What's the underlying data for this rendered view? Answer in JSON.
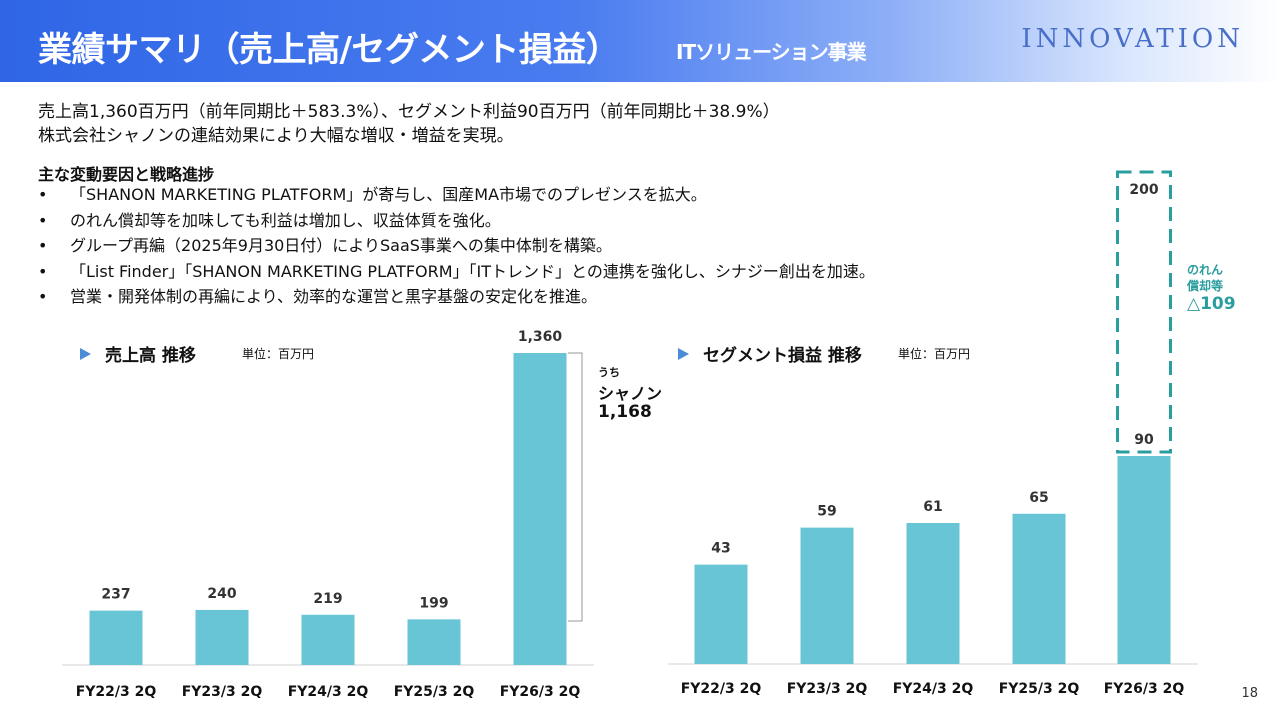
{
  "header": {
    "title": "業績サマリ（売上高/セグメント損益）",
    "subtitle": "ITソリューション事業",
    "logo": "INNOVATION"
  },
  "summary": {
    "line1": "売上高1,360百万円（前年同期比＋583.3%）、セグメント利益90百万円（前年同期比＋38.9%）",
    "line2": "株式会社シャノンの連結効果により大幅な増収・増益を実現。"
  },
  "points": {
    "title": "主な変動要因と戦略進捗",
    "items": [
      "「SHANON MARKETING PLATFORM」が寄与し、国産MA市場でのプレゼンスを拡大。",
      "のれん償却等を加味しても利益は増加し、収益体質を強化。",
      "グループ再編（2025年9月30日付）によりSaaS事業への集中体制を構築。",
      "「List Finder」「SHANON MARKETING PLATFORM」「ITトレンド」との連携を強化し、シナジー創出を加速。",
      "営業・開発体制の再編により、効率的な運営と黒字基盤の安定化を推進。"
    ]
  },
  "colors": {
    "bar": "#67c5d5",
    "accent": "#2a9d9f",
    "marker": "#4a8cd6"
  },
  "chart_data": [
    {
      "type": "bar",
      "title": "売上高 推移",
      "unit": "単位：百万円",
      "categories": [
        "FY22/3 2Q",
        "FY23/3 2Q",
        "FY24/3 2Q",
        "FY25/3 2Q",
        "FY26/3 2Q"
      ],
      "values": [
        237,
        240,
        219,
        199,
        1360
      ],
      "value_labels": [
        "237",
        "240",
        "219",
        "199",
        "1,360"
      ],
      "annotation": {
        "prefix": "うち",
        "name": "シャノン",
        "value": "1,168",
        "amount": 1168
      }
    },
    {
      "type": "bar",
      "title": "セグメント損益 推移",
      "unit": "単位：百万円",
      "categories": [
        "FY22/3 2Q",
        "FY23/3 2Q",
        "FY24/3 2Q",
        "FY25/3 2Q",
        "FY26/3 2Q"
      ],
      "values": [
        43,
        59,
        61,
        65,
        90
      ],
      "value_labels": [
        "43",
        "59",
        "61",
        "65",
        "90"
      ],
      "adjusted": {
        "value": 200,
        "label": "200"
      },
      "annotation": {
        "lines": [
          "のれん",
          "償却等"
        ],
        "value": "△109"
      }
    }
  ],
  "page_number": "18"
}
